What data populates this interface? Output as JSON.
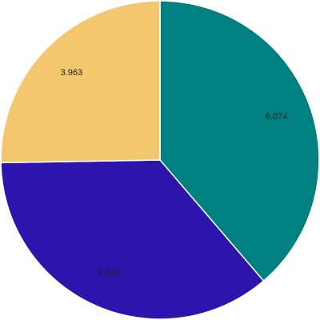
{
  "chart_data": {
    "type": "pie",
    "values": [
      6.074,
      5.648,
      3.963
    ],
    "colors": [
      "#008080",
      "#2c14ad",
      "#f2c76e"
    ]
  }
}
